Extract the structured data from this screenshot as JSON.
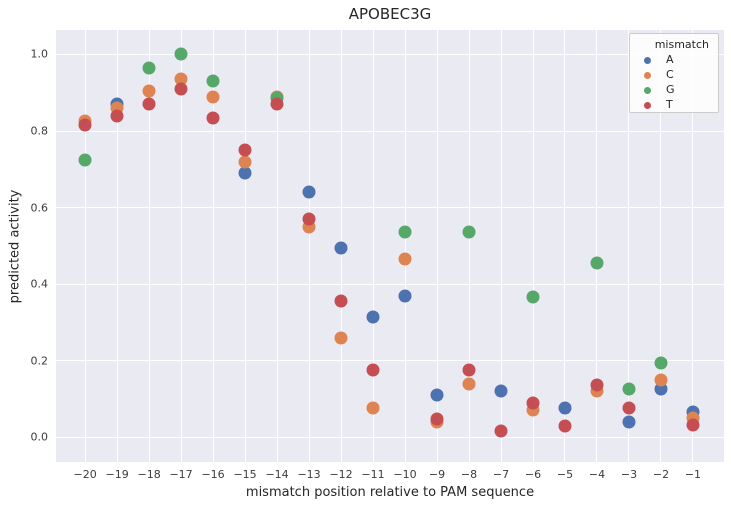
{
  "title": "APOBEC3G",
  "axes": {
    "xlabel": "mismatch position relative to PAM sequence",
    "ylabel": "predicted activity",
    "x_ticks": [
      {
        "value": -20,
        "label": "−20"
      },
      {
        "value": -19,
        "label": "−19"
      },
      {
        "value": -18,
        "label": "−18"
      },
      {
        "value": -17,
        "label": "−17"
      },
      {
        "value": -16,
        "label": "−16"
      },
      {
        "value": -15,
        "label": "−15"
      },
      {
        "value": -14,
        "label": "−14"
      },
      {
        "value": -13,
        "label": "−13"
      },
      {
        "value": -12,
        "label": "−12"
      },
      {
        "value": -11,
        "label": "−11"
      },
      {
        "value": -10,
        "label": "−10"
      },
      {
        "value": -9,
        "label": "−9"
      },
      {
        "value": -8,
        "label": "−8"
      },
      {
        "value": -7,
        "label": "−7"
      },
      {
        "value": -6,
        "label": "−6"
      },
      {
        "value": -5,
        "label": "−5"
      },
      {
        "value": -4,
        "label": "−4"
      },
      {
        "value": -3,
        "label": "−3"
      },
      {
        "value": -2,
        "label": "−2"
      },
      {
        "value": -1,
        "label": "−1"
      }
    ],
    "y_ticks": [
      {
        "value": 0.0,
        "label": "0.0"
      },
      {
        "value": 0.2,
        "label": "0.2"
      },
      {
        "value": 0.4,
        "label": "0.4"
      },
      {
        "value": 0.6,
        "label": "0.6"
      },
      {
        "value": 0.8,
        "label": "0.8"
      },
      {
        "value": 1.0,
        "label": "1.0"
      }
    ]
  },
  "legend": {
    "title": "mismatch",
    "entries": [
      {
        "label": "A",
        "color": "#4C72B0"
      },
      {
        "label": "C",
        "color": "#DD8452"
      },
      {
        "label": "G",
        "color": "#55A868"
      },
      {
        "label": "T",
        "color": "#C44E52"
      }
    ]
  },
  "style": {
    "figure_bg": "#FFFFFF",
    "plot_bg": "#EAEAF2",
    "grid_color": "#FFFFFF",
    "text_color": "#262626"
  },
  "chart_data": {
    "type": "scatter",
    "title": "APOBEC3G",
    "xlabel": "mismatch position relative to PAM sequence",
    "ylabel": "predicted activity",
    "xlim": [
      -20.91,
      -0.03
    ],
    "ylim": [
      -0.065,
      1.064
    ],
    "grid": true,
    "legend_title": "mismatch",
    "legend_position": "upper right",
    "series": [
      {
        "name": "A",
        "color": "#4C72B0",
        "points": [
          [
            -19,
            0.87
          ],
          [
            -15,
            0.69
          ],
          [
            -13,
            0.64
          ],
          [
            -12,
            0.495
          ],
          [
            -11,
            0.315
          ],
          [
            -10,
            0.37
          ],
          [
            -9,
            0.11
          ],
          [
            -7,
            0.12
          ],
          [
            -5,
            0.075
          ],
          [
            -3,
            0.04
          ],
          [
            -2,
            0.125
          ],
          [
            -1,
            0.065
          ]
        ]
      },
      {
        "name": "C",
        "color": "#DD8452",
        "points": [
          [
            -20,
            0.825
          ],
          [
            -19,
            0.86
          ],
          [
            -18,
            0.905
          ],
          [
            -17,
            0.935
          ],
          [
            -16,
            0.89
          ],
          [
            -15,
            0.72
          ],
          [
            -14,
            0.89
          ],
          [
            -13,
            0.55
          ],
          [
            -12,
            0.26
          ],
          [
            -11,
            0.075
          ],
          [
            -10,
            0.465
          ],
          [
            -9,
            0.04
          ],
          [
            -8,
            0.14
          ],
          [
            -6,
            0.07
          ],
          [
            -4,
            0.12
          ],
          [
            -2,
            0.15
          ],
          [
            -1,
            0.05
          ]
        ]
      },
      {
        "name": "G",
        "color": "#55A868",
        "points": [
          [
            -20,
            0.725
          ],
          [
            -18,
            0.965
          ],
          [
            -17,
            1.0
          ],
          [
            -16,
            0.93
          ],
          [
            -14,
            0.885
          ],
          [
            -10,
            0.535
          ],
          [
            -8,
            0.535
          ],
          [
            -6,
            0.365
          ],
          [
            -4,
            0.455
          ],
          [
            -3,
            0.125
          ],
          [
            -2,
            0.195
          ]
        ]
      },
      {
        "name": "T",
        "color": "#C44E52",
        "points": [
          [
            -20,
            0.815
          ],
          [
            -19,
            0.84
          ],
          [
            -18,
            0.87
          ],
          [
            -17,
            0.91
          ],
          [
            -16,
            0.835
          ],
          [
            -15,
            0.75
          ],
          [
            -14,
            0.87
          ],
          [
            -13,
            0.57
          ],
          [
            -12,
            0.355
          ],
          [
            -11,
            0.175
          ],
          [
            -9,
            0.048
          ],
          [
            -8,
            0.175
          ],
          [
            -7,
            0.015
          ],
          [
            -6,
            0.09
          ],
          [
            -5,
            0.03
          ],
          [
            -4,
            0.135
          ],
          [
            -3,
            0.075
          ],
          [
            -1,
            0.032
          ]
        ]
      }
    ]
  }
}
